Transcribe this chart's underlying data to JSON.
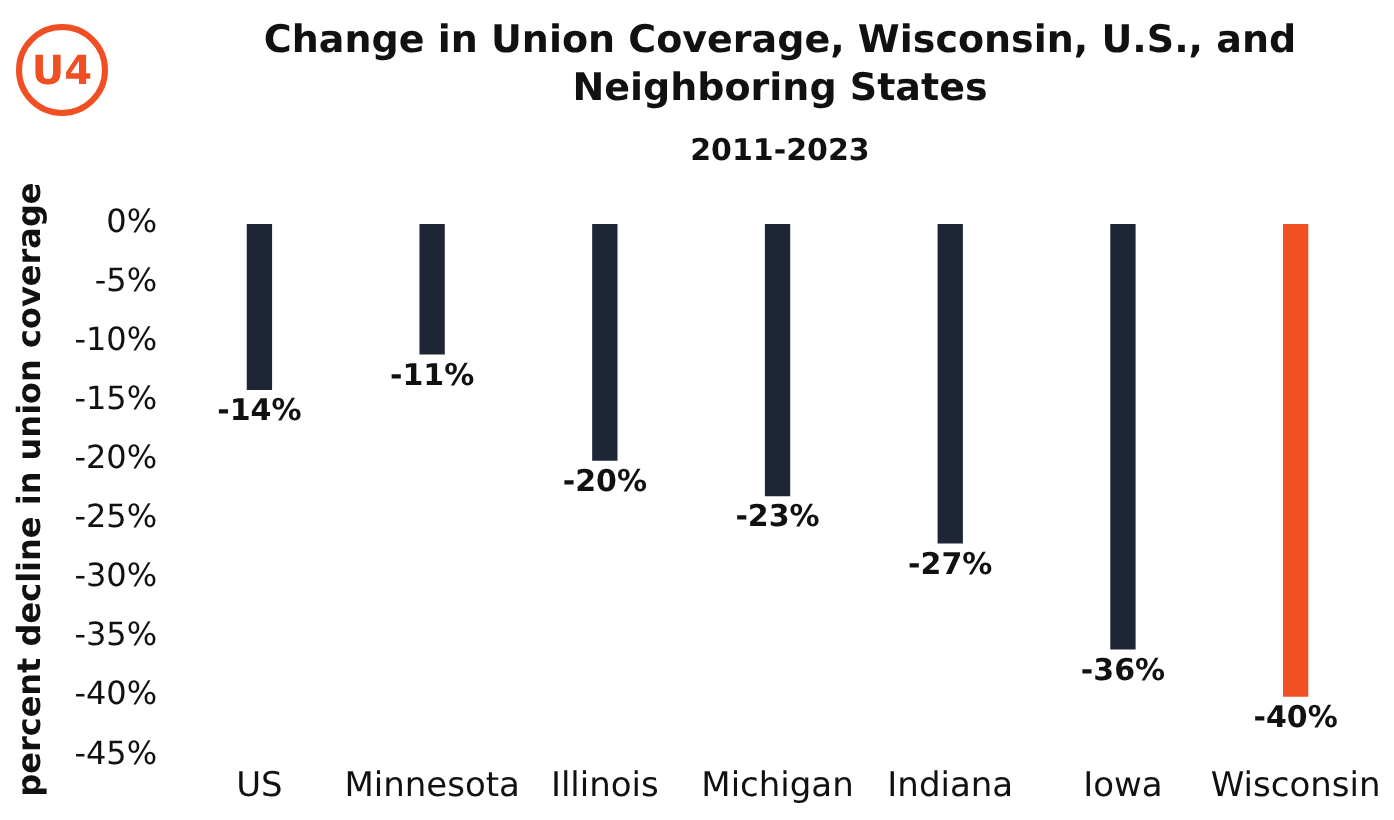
{
  "chart_data": {
    "type": "bar",
    "title": "Change in Union Coverage, Wisconsin, U.S., and Neighboring States",
    "subtitle": "2011-2023",
    "ylabel": "percent decline in union coverage",
    "annotations": [
      "U4"
    ],
    "categories": [
      "US",
      "Minnesota",
      "Illinois",
      "Michigan",
      "Indiana",
      "Iowa",
      "Wisconsin"
    ],
    "values": [
      -14,
      -11,
      -20,
      -23,
      -27,
      -36,
      -40
    ],
    "colors": [
      "#1e2535",
      "#1e2535",
      "#1e2535",
      "#1e2535",
      "#1e2535",
      "#1e2535",
      "#f04e23"
    ],
    "value_labels": [
      "-14%",
      "-11%",
      "-20%",
      "-23%",
      "-27%",
      "-36%",
      "-40%"
    ],
    "ylim": [
      -45,
      0
    ],
    "yticks": [
      {
        "value": 0,
        "label": "0%"
      },
      {
        "value": -5,
        "label": "-5%"
      },
      {
        "value": -10,
        "label": "-10%"
      },
      {
        "value": -15,
        "label": "-15%"
      },
      {
        "value": -20,
        "label": "-20%"
      },
      {
        "value": -25,
        "label": "-25%"
      },
      {
        "value": -30,
        "label": "-30%"
      },
      {
        "value": -35,
        "label": "-35%"
      },
      {
        "value": -40,
        "label": "-40%"
      },
      {
        "value": -45,
        "label": "-45%"
      }
    ],
    "grid": false,
    "legend": false
  }
}
